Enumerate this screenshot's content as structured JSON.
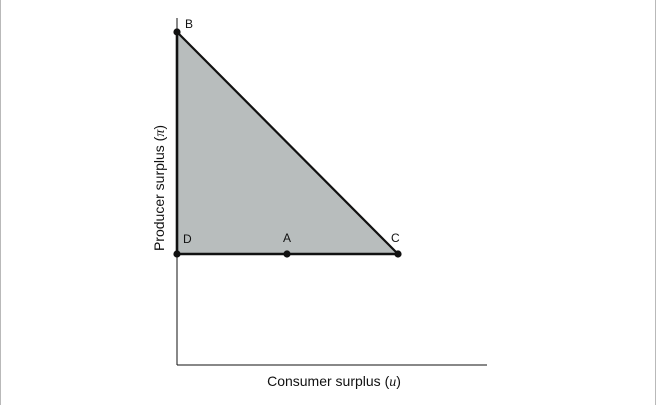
{
  "diagram": {
    "xlabel_text": "Consumer surplus (",
    "xlabel_symbol": "u",
    "xlabel_close": ")",
    "ylabel_text": "Producer surplus (",
    "ylabel_symbol": "π",
    "ylabel_close": ")",
    "points": {
      "B": "B",
      "D": "D",
      "A": "A",
      "C": "C"
    },
    "colors": {
      "region_fill": "#b8bdbd",
      "line": "#111111"
    }
  }
}
